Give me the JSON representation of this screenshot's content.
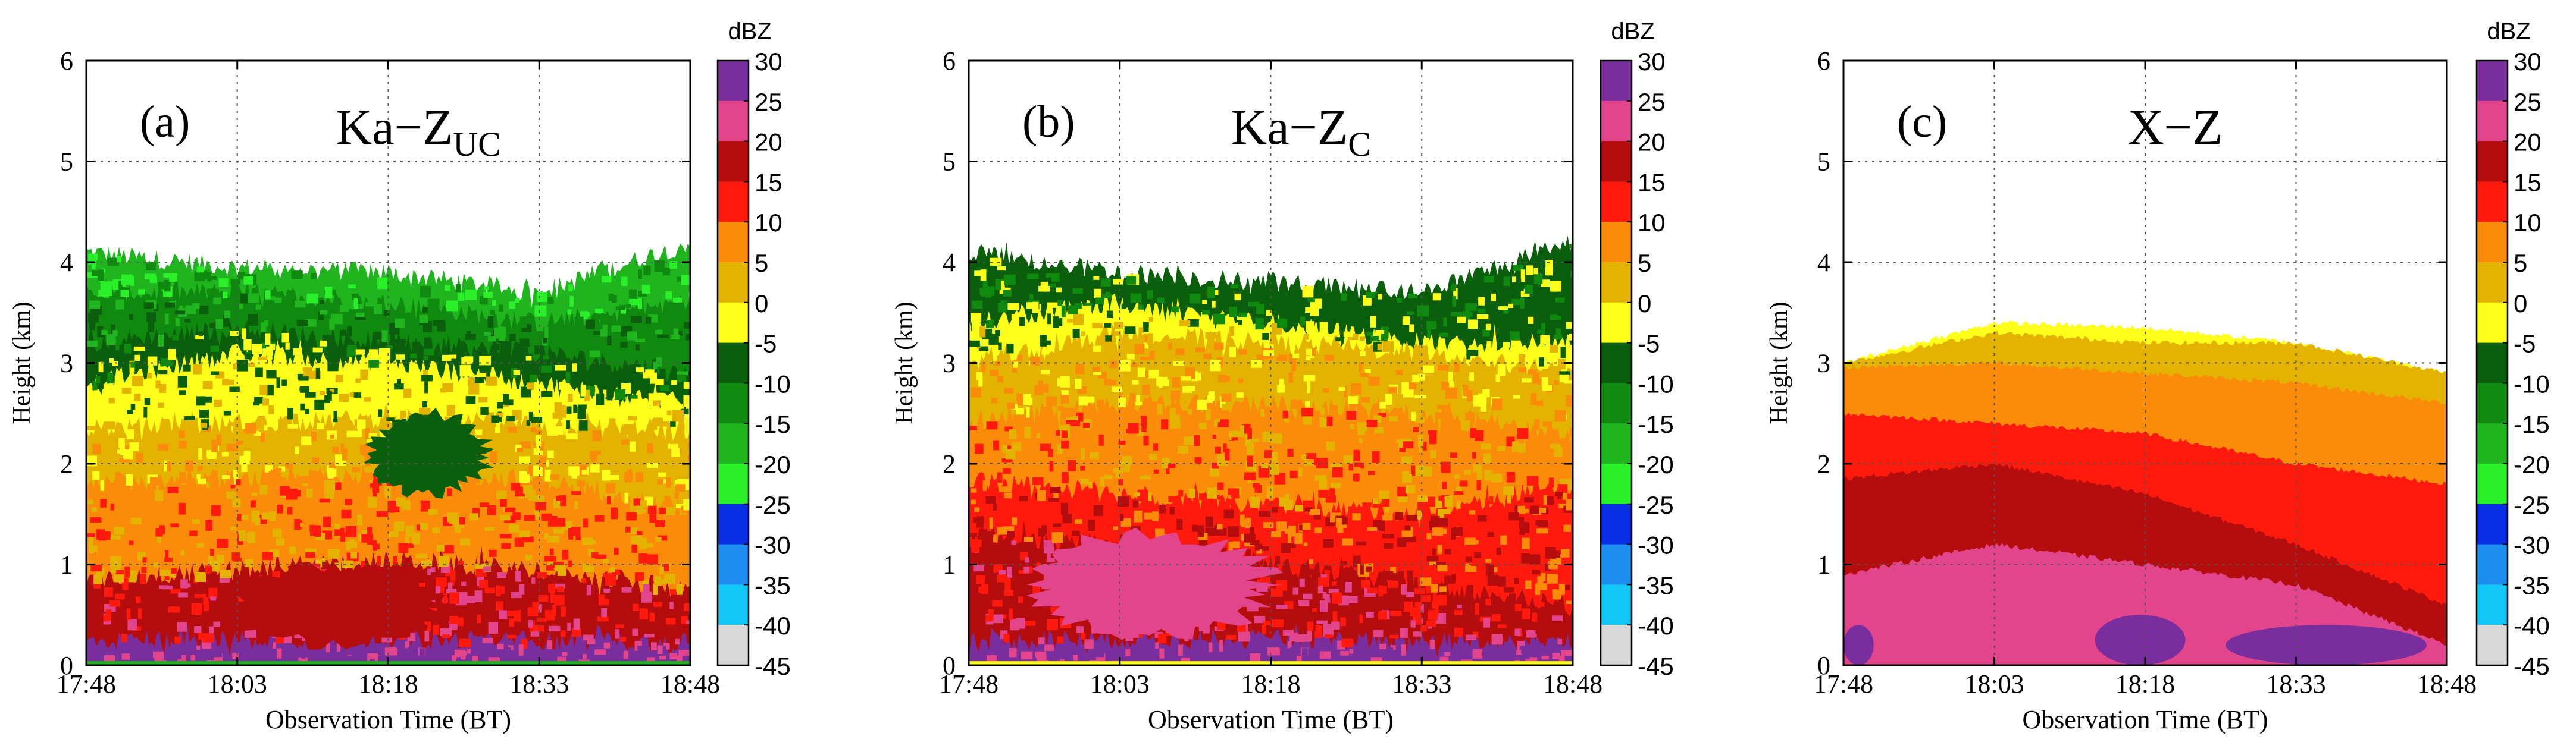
{
  "chart_data": [
    {
      "type": "heatmap",
      "panel_label": "(a)",
      "title_main": "Ka−Z",
      "title_sub": "UC",
      "xlabel": "Observation Time (BT)",
      "ylabel": "Height (km)",
      "x_ticks": [
        "17:48",
        "18:03",
        "18:18",
        "18:33",
        "18:48"
      ],
      "x_range": [
        0,
        60
      ],
      "y_ticks": [
        "0",
        "1",
        "2",
        "3",
        "4",
        "5",
        "6"
      ],
      "ylim": [
        0,
        6
      ],
      "grid": true,
      "x_unit": "minutes since 17:48",
      "layers_top_km": [
        {
          "value": 25,
          "top": [
            0.24,
            0.26,
            0.26,
            0.25,
            0.22
          ]
        },
        {
          "value": 15,
          "top": [
            0.85,
            0.95,
            1.05,
            0.95,
            0.75
          ]
        },
        {
          "value": 5,
          "top": [
            1.8,
            1.85,
            1.9,
            1.85,
            1.55
          ]
        },
        {
          "value": 0,
          "top": [
            2.35,
            2.4,
            2.45,
            2.4,
            2.3
          ]
        },
        {
          "value": -5,
          "top": [
            2.8,
            3.1,
            3.0,
            2.8,
            2.6
          ]
        },
        {
          "value": -10,
          "top": [
            3.2,
            3.35,
            3.2,
            3.1,
            2.9
          ]
        },
        {
          "value": -15,
          "top": [
            3.7,
            3.7,
            3.6,
            3.4,
            3.6
          ]
        },
        {
          "value": -20,
          "top": [
            4.1,
            3.95,
            3.9,
            3.7,
            4.2
          ]
        }
      ],
      "features": [
        {
          "type": "patch",
          "value": -10,
          "x": [
            28,
            40
          ],
          "y": [
            1.7,
            2.5
          ]
        },
        {
          "type": "patch",
          "value": 15,
          "x": [
            14,
            35
          ],
          "y": [
            0.2,
            1.0
          ]
        }
      ]
    },
    {
      "type": "heatmap",
      "panel_label": "(b)",
      "title_main": "Ka−Z",
      "title_sub": "C",
      "xlabel": "Observation Time (BT)",
      "ylabel": "Height (km)",
      "x_ticks": [
        "17:48",
        "18:03",
        "18:18",
        "18:33",
        "18:48"
      ],
      "x_range": [
        0,
        60
      ],
      "y_ticks": [
        "0",
        "1",
        "2",
        "3",
        "4",
        "5",
        "6"
      ],
      "ylim": [
        0,
        6
      ],
      "grid": true,
      "x_unit": "minutes since 17:48",
      "layers_top_km": [
        {
          "value": 25,
          "top": [
            0.24,
            0.26,
            0.26,
            0.25,
            0.22
          ]
        },
        {
          "value": 15,
          "top": [
            1.3,
            1.2,
            1.0,
            0.8,
            0.6
          ]
        },
        {
          "value": 10,
          "top": [
            1.85,
            1.7,
            1.6,
            1.5,
            1.8
          ]
        },
        {
          "value": 5,
          "top": [
            2.4,
            2.6,
            2.6,
            2.5,
            2.3
          ]
        },
        {
          "value": 0,
          "top": [
            3.0,
            3.3,
            3.2,
            3.1,
            2.9
          ]
        },
        {
          "value": -5,
          "top": [
            3.4,
            3.6,
            3.4,
            3.2,
            3.2
          ]
        },
        {
          "value": -10,
          "top": [
            4.1,
            3.9,
            3.8,
            3.7,
            4.2
          ]
        }
      ],
      "features": [
        {
          "type": "patch",
          "value": 20,
          "x": [
            6,
            30
          ],
          "y": [
            0.3,
            1.3
          ]
        }
      ]
    },
    {
      "type": "heatmap",
      "panel_label": "(c)",
      "title_main": "X−Z",
      "title_sub": "",
      "xlabel": "Observation Time (BT)",
      "ylabel": "Height (km)",
      "x_ticks": [
        "17:48",
        "18:03",
        "18:18",
        "18:33",
        "18:48"
      ],
      "x_range": [
        0,
        60
      ],
      "y_ticks": [
        "0",
        "1",
        "2",
        "3",
        "4",
        "5",
        "6"
      ],
      "ylim": [
        0,
        6
      ],
      "grid": true,
      "x_unit": "minutes since 17:48",
      "layers_top_km": [
        {
          "value": 20,
          "top": [
            0.9,
            1.2,
            1.0,
            0.8,
            0.2
          ]
        },
        {
          "value": 15,
          "top": [
            1.85,
            2.0,
            1.7,
            1.2,
            0.6
          ]
        },
        {
          "value": 10,
          "top": [
            2.5,
            2.4,
            2.3,
            2.0,
            1.8
          ]
        },
        {
          "value": 5,
          "top": [
            2.95,
            3.0,
            2.9,
            2.8,
            2.6
          ]
        },
        {
          "value": 0,
          "top": [
            3.0,
            3.3,
            3.2,
            3.2,
            2.9
          ]
        },
        {
          "value": -5,
          "top": [
            3.0,
            3.4,
            3.35,
            3.2,
            2.9
          ]
        }
      ],
      "features": [
        {
          "type": "patch",
          "value": 25,
          "x": [
            0,
            3
          ],
          "y": [
            0.0,
            0.4
          ]
        },
        {
          "type": "patch",
          "value": 25,
          "x": [
            25,
            34
          ],
          "y": [
            0.0,
            0.5
          ]
        },
        {
          "type": "patch",
          "value": 25,
          "x": [
            38,
            58
          ],
          "y": [
            0.0,
            0.4
          ]
        }
      ]
    }
  ],
  "colorbar": {
    "unit": "dBZ",
    "tick_labels": [
      "30",
      "25",
      "20",
      "15",
      "10",
      "5",
      "0",
      "-5",
      "-10",
      "-15",
      "-20",
      "-25",
      "-30",
      "-35",
      "-40",
      "-45"
    ],
    "bins": [
      {
        "from": 25,
        "to": 30,
        "color": "#7a2e9e"
      },
      {
        "from": 20,
        "to": 25,
        "color": "#e2458c"
      },
      {
        "from": 15,
        "to": 20,
        "color": "#b50d0d"
      },
      {
        "from": 10,
        "to": 15,
        "color": "#ff1a0d"
      },
      {
        "from": 5,
        "to": 10,
        "color": "#fa8c0a"
      },
      {
        "from": 0,
        "to": 5,
        "color": "#e3b300"
      },
      {
        "from": -5,
        "to": 0,
        "color": "#ffff19"
      },
      {
        "from": -10,
        "to": -5,
        "color": "#0b5e0b"
      },
      {
        "from": -15,
        "to": -10,
        "color": "#0f8a0f"
      },
      {
        "from": -20,
        "to": -15,
        "color": "#20b41e"
      },
      {
        "from": -25,
        "to": -20,
        "color": "#2af02a"
      },
      {
        "from": -30,
        "to": -25,
        "color": "#0a2ee6"
      },
      {
        "from": -35,
        "to": -30,
        "color": "#1e8ff0"
      },
      {
        "from": -40,
        "to": -35,
        "color": "#12c7f5"
      },
      {
        "from": -45,
        "to": -40,
        "color": "#d9d9d9"
      }
    ]
  }
}
